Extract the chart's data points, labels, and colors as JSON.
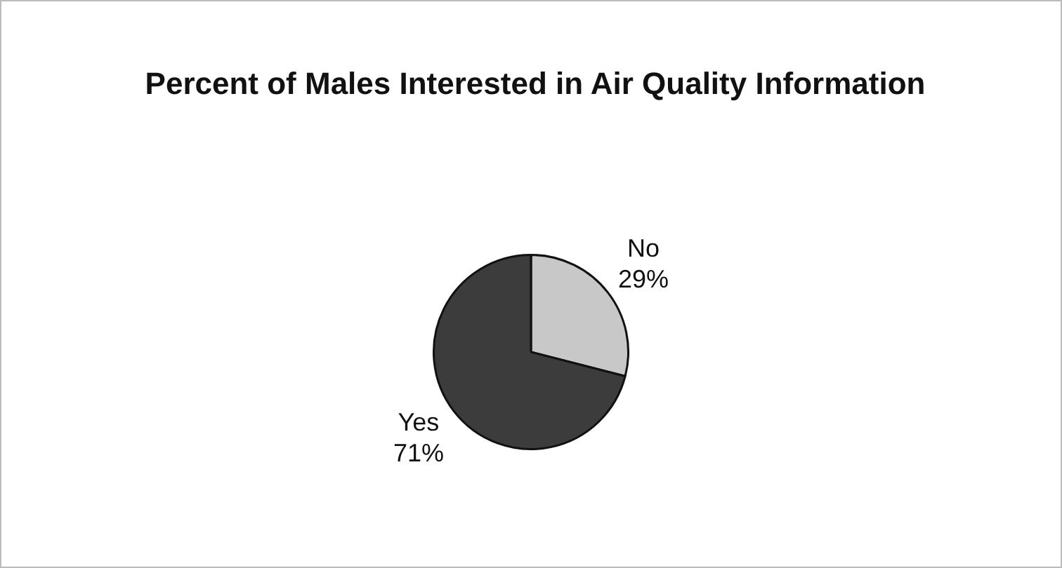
{
  "chart_data": {
    "type": "pie",
    "title": "Percent of Males Interested in Air Quality Information",
    "categories": [
      "No",
      "Yes"
    ],
    "values": [
      29,
      71
    ],
    "colors": [
      "#c8c8c8",
      "#3c3c3c"
    ],
    "value_labels": [
      "29%",
      "71%"
    ],
    "legend": false
  }
}
